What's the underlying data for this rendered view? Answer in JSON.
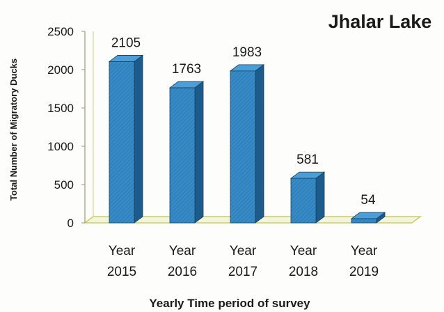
{
  "chart_data": {
    "type": "bar",
    "title": "Jhalar Lake",
    "xlabel": "Yearly Time period of survey",
    "ylabel": "Total Number of Migratory Ducks",
    "categories": [
      [
        "Year",
        "2015"
      ],
      [
        "Year",
        "2016"
      ],
      [
        "Year",
        "2017"
      ],
      [
        "Year",
        "2018"
      ],
      [
        "Year",
        "2019"
      ]
    ],
    "values": [
      2105,
      1763,
      1983,
      581,
      54
    ],
    "data_labels": [
      "2105",
      "1763",
      "1983",
      "581",
      "54"
    ],
    "yticks": [
      "0",
      "500",
      "1000",
      "1500",
      "2000",
      "2500"
    ],
    "ylim": [
      0,
      2500
    ],
    "grid": false,
    "style": "3d-column",
    "colors": {
      "bar_front": "#2f84c0",
      "bar_side": "#1c5c8d",
      "bar_top": "#4b9fd6",
      "bar_outline": "#163f60",
      "floor": "#c9cf6a",
      "wall": "#d8d890",
      "text": "#1a1a1a"
    }
  }
}
